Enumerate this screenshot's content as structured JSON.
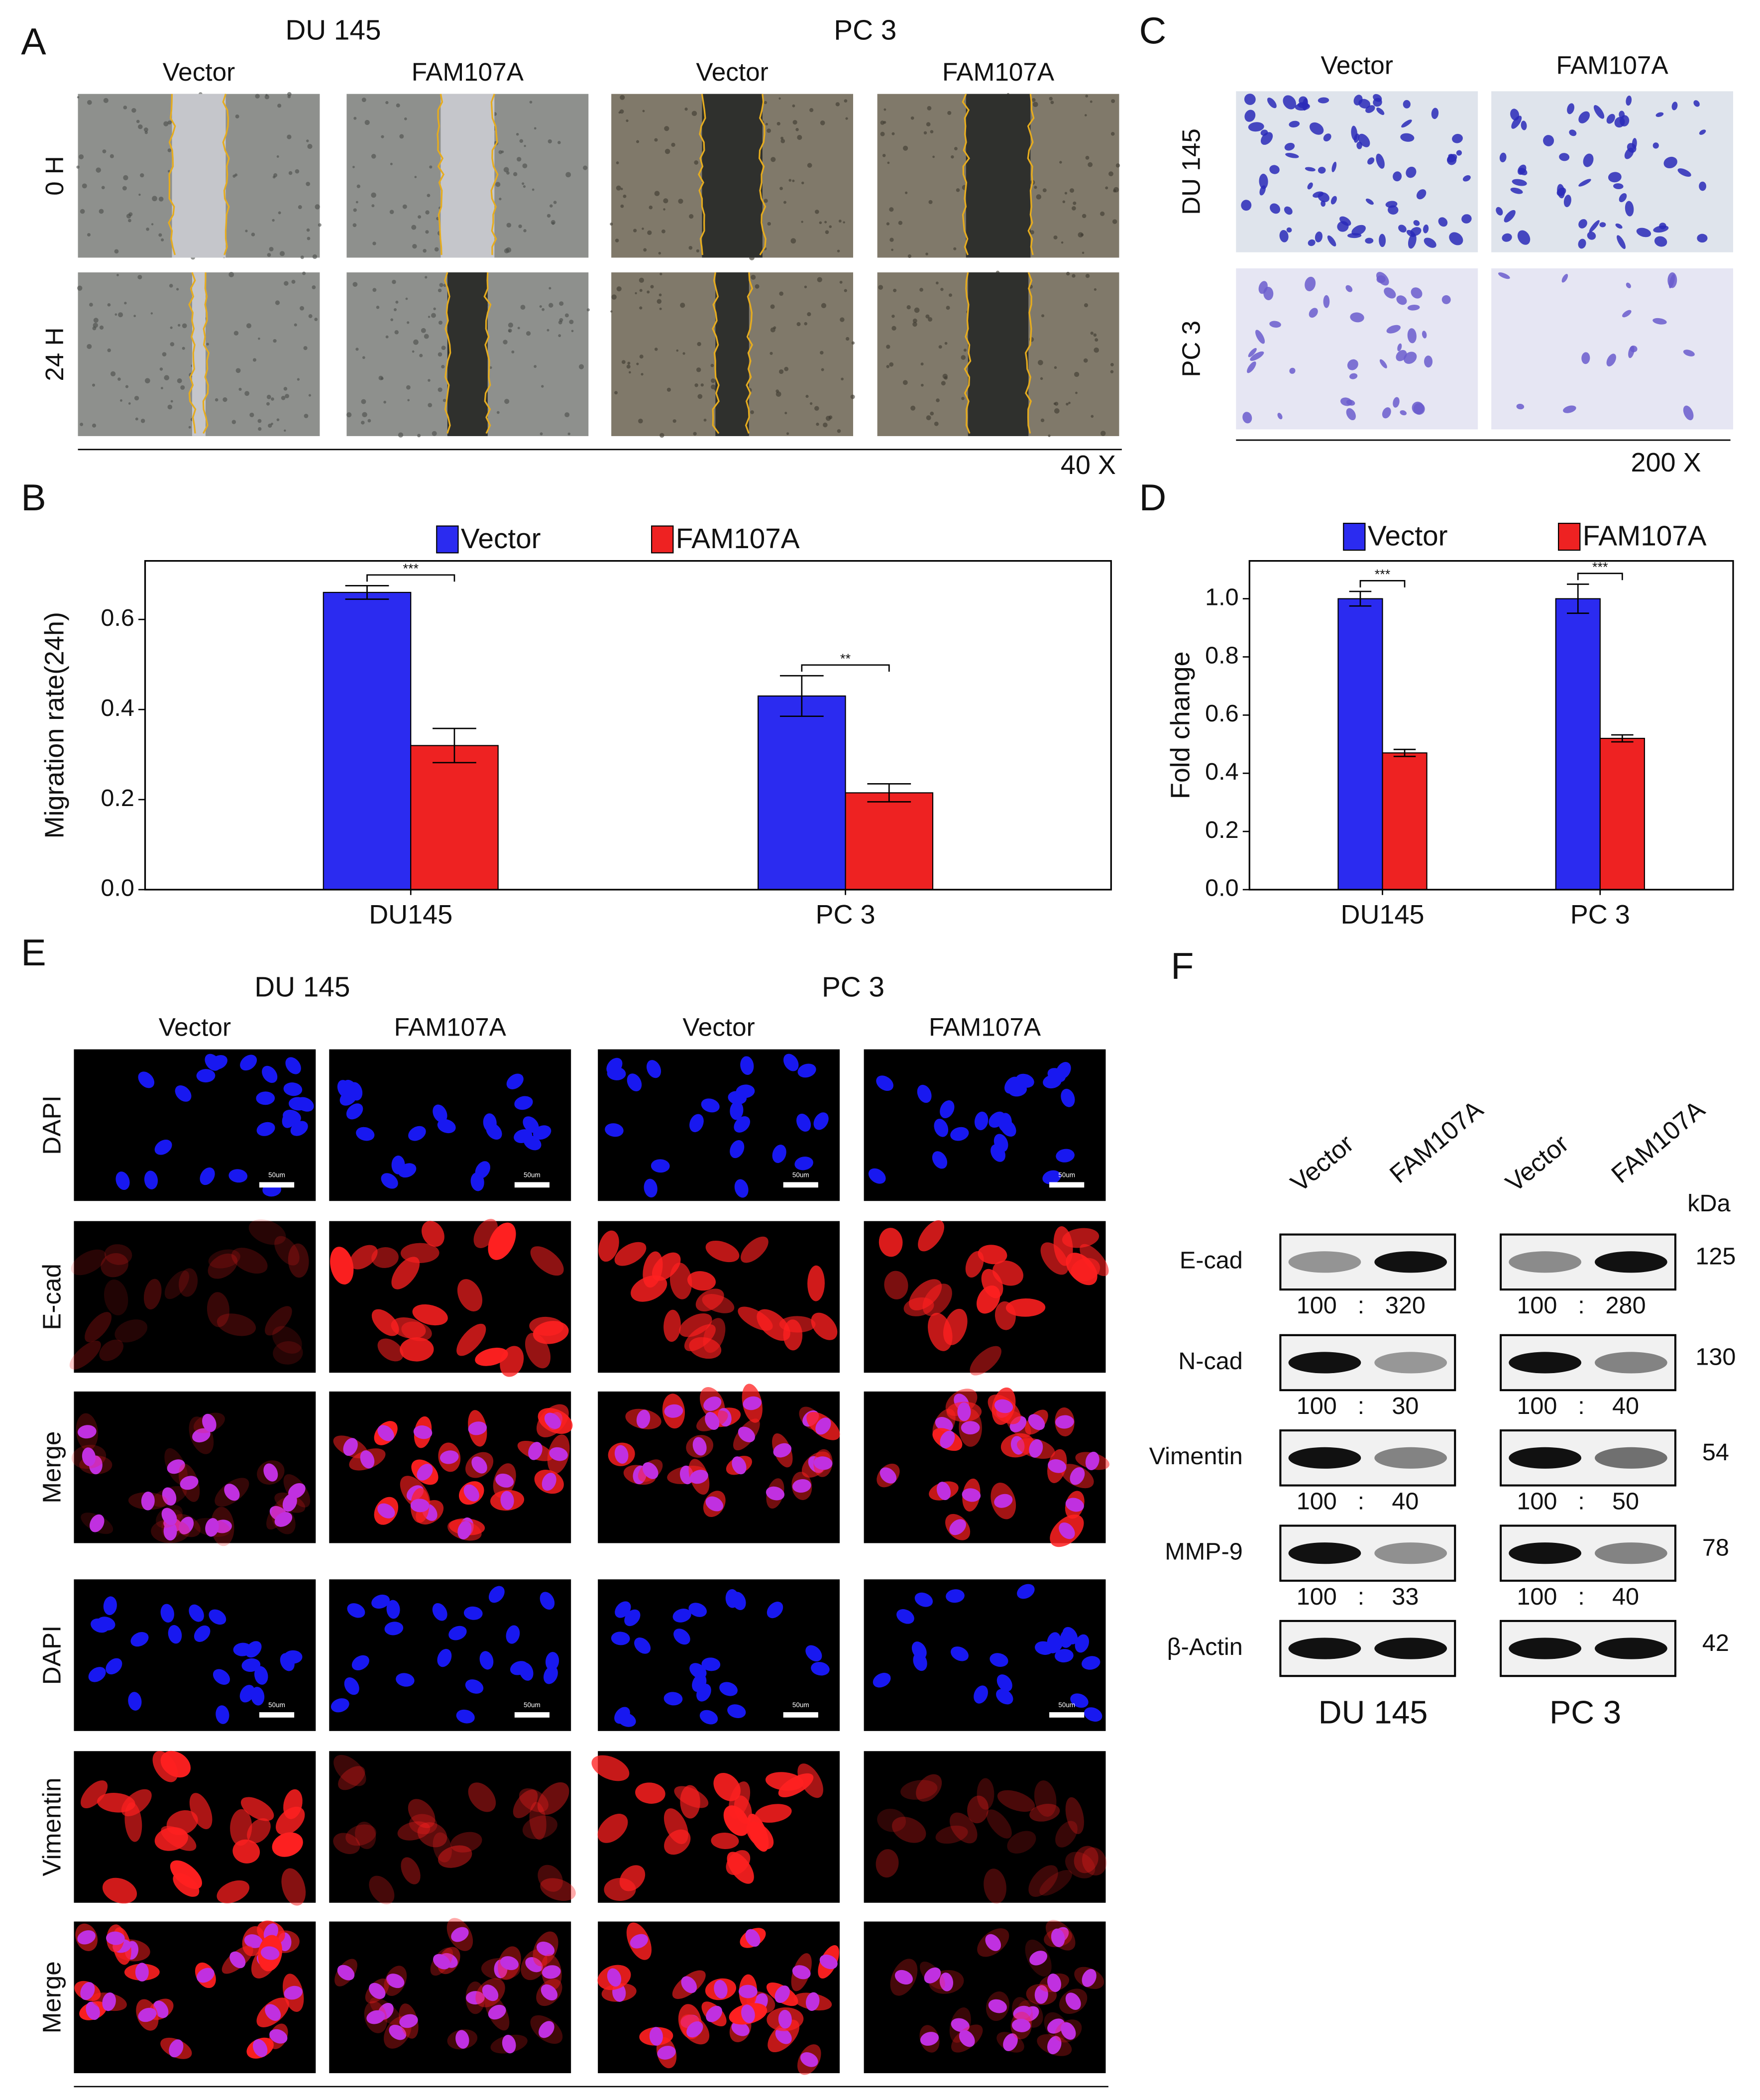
{
  "figure": {
    "A": {
      "label": "A",
      "groups": [
        "DU 145",
        "PC 3"
      ],
      "columns": [
        "Vector",
        "FAM107A",
        "Vector",
        "FAM107A"
      ],
      "rows": [
        "0 H",
        "24 H"
      ],
      "magnification": "40 X"
    },
    "C": {
      "label": "C",
      "columns": [
        "Vector",
        "FAM107A"
      ],
      "rows": [
        "DU 145",
        "PC 3"
      ],
      "magnification": "200 X"
    },
    "E": {
      "label": "E",
      "groups": [
        "DU 145",
        "PC 3"
      ],
      "columns": [
        "Vector",
        "FAM107A",
        "Vector",
        "FAM107A"
      ],
      "rows": [
        "DAPI",
        "E-cad",
        "Merge",
        "DAPI",
        "Vimentin",
        "Merge"
      ],
      "scale_bar": "50um"
    },
    "F": {
      "label": "F",
      "columns": [
        "Vector",
        "FAM107A",
        "Vector",
        "FAM107A"
      ],
      "unit": "kDa",
      "separator": ":",
      "cell_lines": [
        "DU 145",
        "PC 3"
      ],
      "rows": [
        {
          "protein": "E-cad",
          "ratios": [
            [
              100,
              320
            ],
            [
              100,
              280
            ]
          ],
          "kda": 125
        },
        {
          "protein": "N-cad",
          "ratios": [
            [
              100,
              30
            ],
            [
              100,
              40
            ]
          ],
          "kda": 130
        },
        {
          "protein": "Vimentin",
          "ratios": [
            [
              100,
              40
            ],
            [
              100,
              50
            ]
          ],
          "kda": 54
        },
        {
          "protein": "MMP-9",
          "ratios": [
            [
              100,
              33
            ],
            [
              100,
              40
            ]
          ],
          "kda": 78
        },
        {
          "protein": "β-Actin",
          "kda": 42
        }
      ]
    }
  },
  "chart_data": [
    {
      "panel_label": "B",
      "type": "bar",
      "y_label": "Migration rate(24h)",
      "categories": [
        "DU145",
        "PC 3"
      ],
      "series": [
        {
          "name": "Vector",
          "color": "#2b2bf0",
          "values": [
            0.66,
            0.43
          ],
          "errors": [
            0.015,
            0.045
          ]
        },
        {
          "name": "FAM107A",
          "color": "#ee2222",
          "values": [
            0.32,
            0.215
          ],
          "errors": [
            0.038,
            0.02
          ]
        }
      ],
      "significance": [
        "***",
        "**"
      ],
      "ylim": [
        0,
        0.73
      ],
      "yticks": [
        {
          "value": 0,
          "label": "0.0"
        },
        0.2,
        0.4,
        0.6
      ]
    },
    {
      "panel_label": "D",
      "type": "bar",
      "y_label": "Fold change",
      "categories": [
        "DU145",
        "PC 3"
      ],
      "series": [
        {
          "name": "Vector",
          "color": "#2b2bf0",
          "values": [
            1,
            1
          ],
          "errors": [
            0.025,
            0.05
          ]
        },
        {
          "name": "FAM107A",
          "color": "#ee2222",
          "values": [
            0.47,
            0.52
          ],
          "errors": [
            0.012,
            0.012
          ]
        }
      ],
      "significance": [
        "***",
        "***"
      ],
      "ylim": [
        0,
        1.13
      ],
      "yticks": [
        {
          "value": 0,
          "label": "0.0"
        },
        0.2,
        0.4,
        0.6,
        0.8,
        {
          "value": 1,
          "label": "1.0"
        }
      ]
    }
  ]
}
